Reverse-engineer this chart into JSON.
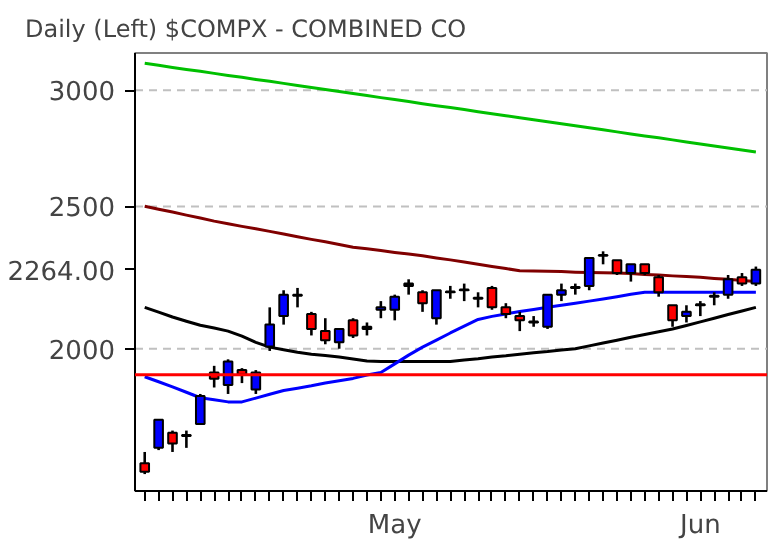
{
  "chart_data": {
    "type": "candlestick",
    "title": "Daily",
    "subtitle": "(Left)   $COMPX - COMBINED CO",
    "categories": [
      null,
      null,
      null,
      null,
      null,
      null,
      null,
      null,
      null,
      null,
      null,
      null,
      null,
      null,
      null,
      null,
      null,
      null,
      "May",
      null,
      null,
      null,
      null,
      null,
      null,
      null,
      null,
      null,
      null,
      null,
      null,
      null,
      null,
      null,
      null,
      null,
      null,
      null,
      null,
      null,
      "Jun",
      null,
      null,
      null,
      null
    ],
    "ohlc": [
      [
        1671,
        1701,
        1643,
        1649
      ],
      [
        1712,
        1789,
        1706,
        1789
      ],
      [
        1753,
        1759,
        1701,
        1724
      ],
      [
        1747,
        1759,
        1712,
        1744
      ],
      [
        1777,
        1863,
        1777,
        1857
      ],
      [
        1927,
        1947,
        1882,
        1908
      ],
      [
        1889,
        1967,
        1863,
        1960
      ],
      [
        1934,
        1940,
        1895,
        1921
      ],
      [
        1876,
        1934,
        1863,
        1927
      ],
      [
        2007,
        2134,
        1993,
        2077
      ],
      [
        2105,
        2192,
        2077,
        2177
      ],
      [
        2177,
        2200,
        2134,
        2173
      ],
      [
        2112,
        2119,
        2042,
        2063
      ],
      [
        2056,
        2098,
        2014,
        2027
      ],
      [
        2020,
        2063,
        2000,
        2063
      ],
      [
        2091,
        2098,
        2034,
        2042
      ],
      [
        2063,
        2084,
        2042,
        2070
      ],
      [
        2126,
        2155,
        2098,
        2134
      ],
      [
        2126,
        2177,
        2091,
        2170
      ],
      [
        2207,
        2230,
        2177,
        2215
      ],
      [
        2185,
        2192,
        2119,
        2148
      ],
      [
        2098,
        2192,
        2077,
        2192
      ],
      [
        2185,
        2207,
        2163,
        2188
      ],
      [
        2192,
        2215,
        2155,
        2195
      ],
      [
        2163,
        2185,
        2134,
        2166
      ],
      [
        2200,
        2207,
        2126,
        2134
      ],
      [
        2134,
        2148,
        2098,
        2112
      ],
      [
        2105,
        2119,
        2056,
        2091
      ],
      [
        2084,
        2105,
        2070,
        2087
      ],
      [
        2070,
        2177,
        2063,
        2177
      ],
      [
        2177,
        2215,
        2155,
        2192
      ],
      [
        2200,
        2215,
        2177,
        2203
      ],
      [
        2207,
        2306,
        2192,
        2306
      ],
      [
        2314,
        2330,
        2283,
        2317
      ],
      [
        2298,
        2298,
        2245,
        2252
      ],
      [
        2252,
        2283,
        2222,
        2283
      ],
      [
        2283,
        2283,
        2245,
        2252
      ],
      [
        2237,
        2245,
        2170,
        2185
      ],
      [
        2141,
        2141,
        2070,
        2091
      ],
      [
        2105,
        2141,
        2084,
        2119
      ],
      [
        2141,
        2155,
        2105,
        2144
      ],
      [
        2170,
        2185,
        2141,
        2173
      ],
      [
        2177,
        2245,
        2163,
        2230
      ],
      [
        2237,
        2252,
        2207,
        2215
      ],
      [
        2215,
        2275,
        2207,
        2264
      ]
    ],
    "colors": [
      "#ff0000",
      "#0000ff",
      "#ff0000",
      "#000000",
      "#0000ff",
      "#ff0000",
      "#0000ff",
      "#ff0000",
      "#0000ff",
      "#0000ff",
      "#0000ff",
      "#000000",
      "#ff0000",
      "#ff0000",
      "#0000ff",
      "#ff0000",
      "#000000",
      "#0000ff",
      "#0000ff",
      "#000000",
      "#ff0000",
      "#0000ff",
      "#000000",
      "#000000",
      "#000000",
      "#ff0000",
      "#ff0000",
      "#ff0000",
      "#000000",
      "#0000ff",
      "#0000ff",
      "#000000",
      "#0000ff",
      "#000000",
      "#ff0000",
      "#0000ff",
      "#ff0000",
      "#ff0000",
      "#ff0000",
      "#0000ff",
      "#000000",
      "#000000",
      "#0000ff",
      "#ff0000",
      "#0000ff"
    ],
    "series": [
      {
        "type": "line",
        "color": "#00c000",
        "values": [
          3129,
          3119,
          3109,
          3099,
          3090,
          3080,
          3070,
          3061,
          3051,
          3042,
          3032,
          3022,
          3013,
          3003,
          2994,
          2984,
          2975,
          2965,
          2956,
          2947,
          2937,
          2928,
          2919,
          2910,
          2900,
          2891,
          2882,
          2873,
          2864,
          2855,
          2846,
          2837,
          2828,
          2819,
          2810,
          2801,
          2792,
          2784,
          2775,
          2766,
          2757,
          2748,
          2740,
          2731,
          2723
        ]
      },
      {
        "type": "line",
        "color": "#800000",
        "values": [
          2501,
          2489,
          2478,
          2466,
          2455,
          2443,
          2433,
          2423,
          2414,
          2404,
          2394,
          2384,
          2374,
          2365,
          2355,
          2345,
          2339,
          2333,
          2326,
          2320,
          2314,
          2306,
          2299,
          2291,
          2283,
          2275,
          2268,
          2260,
          2259,
          2258,
          2257,
          2255,
          2254,
          2253,
          2252,
          2250,
          2247,
          2245,
          2242,
          2240,
          2237,
          2233,
          2230,
          2226,
          2222
        ]
      },
      {
        "type": "line",
        "color": "#000000",
        "values": [
          2134,
          2118,
          2102,
          2088,
          2075,
          2066,
          2056,
          2040,
          2020,
          2005,
          1997,
          1989,
          1983,
          1979,
          1974,
          1968,
          1962,
          1960,
          1960,
          1960,
          1960,
          1960,
          1960,
          1965,
          1969,
          1974,
          1978,
          1983,
          1987,
          1991,
          1996,
          2000,
          2009,
          2018,
          2027,
          2036,
          2045,
          2054,
          2063,
          2074,
          2086,
          2098,
          2110,
          2122,
          2134
        ]
      },
      {
        "type": "line",
        "color": "#0000ff",
        "values": [
          1914,
          1899,
          1884,
          1868,
          1852,
          1846,
          1840,
          1840,
          1851,
          1862,
          1873,
          1880,
          1887,
          1895,
          1902,
          1909,
          1919,
          1927,
          1953,
          1980,
          2005,
          2027,
          2050,
          2072,
          2094,
          2104,
          2112,
          2120,
          2127,
          2134,
          2141,
          2148,
          2155,
          2162,
          2170,
          2178,
          2185,
          2185,
          2185,
          2185,
          2185,
          2185,
          2185,
          2185,
          2185
        ]
      }
    ],
    "ylim": [
      1600,
      3180
    ],
    "yticks": [
      2000,
      {
        "value": 2264,
        "label": "2264.00"
      },
      2500,
      3000
    ],
    "log": "y",
    "grid": "y",
    "ref_lines": [
      {
        "axis": "y",
        "value": 1920,
        "color": "#ff0000"
      }
    ],
    "line_style": "solid"
  }
}
